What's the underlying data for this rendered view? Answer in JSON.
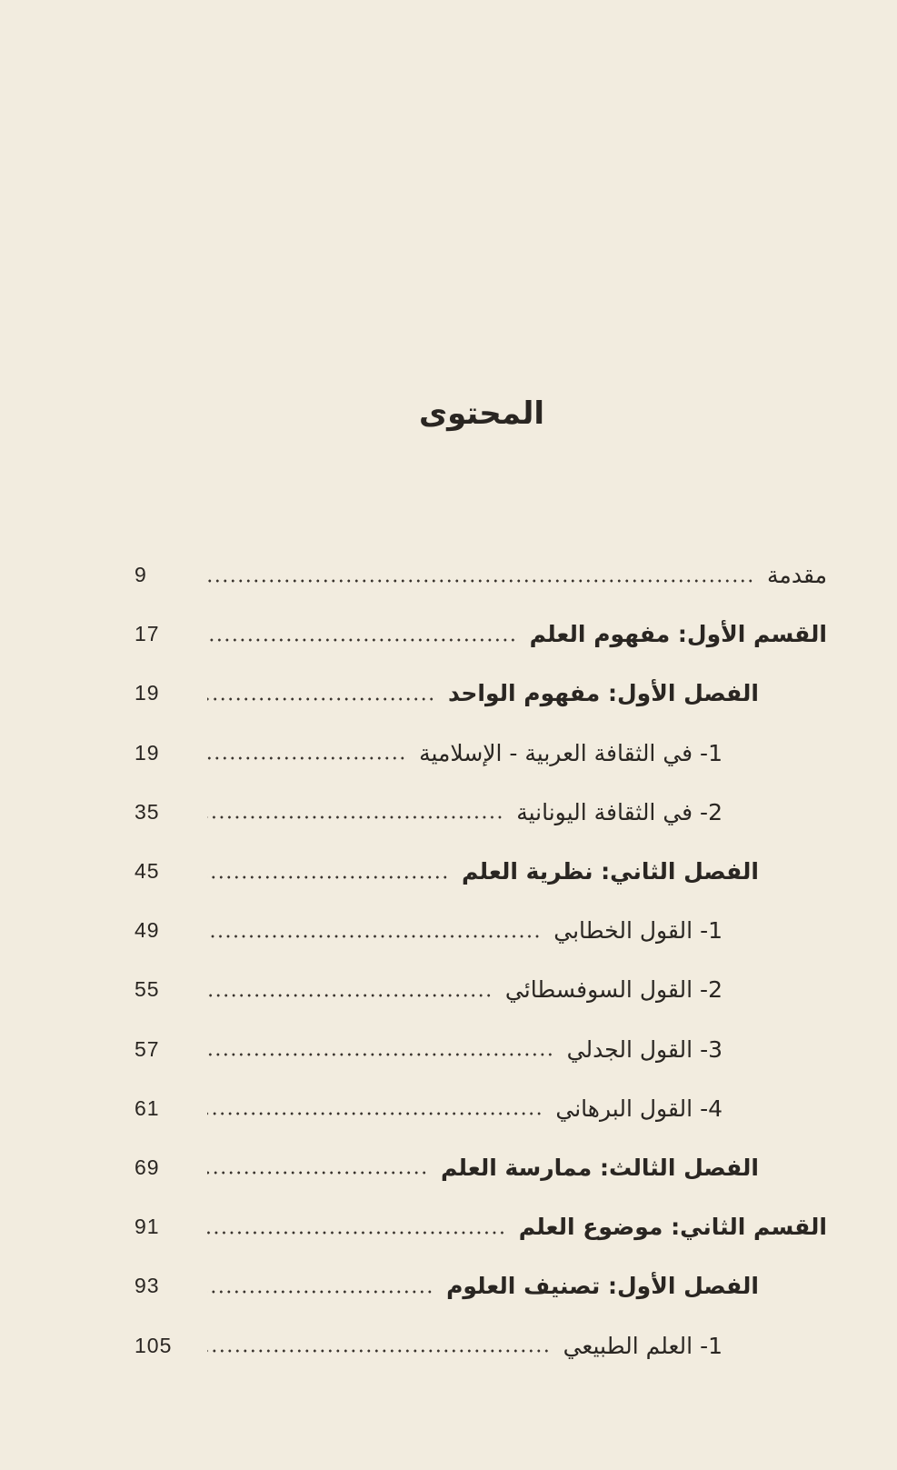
{
  "title": "المحتوى",
  "entries": [
    {
      "text": "مقدمة",
      "page": "9",
      "level": "intro"
    },
    {
      "text": "القسم الأول: مفهوم العلم",
      "page": "17",
      "level": "0"
    },
    {
      "text": "الفصل الأول: مفهوم الواحد",
      "page": "19",
      "level": "1"
    },
    {
      "text": "1- في الثقافة العربية - الإسلامية",
      "page": "19",
      "level": "2"
    },
    {
      "text": "2- في الثقافة اليونانية",
      "page": "35",
      "level": "2"
    },
    {
      "text": "الفصل الثاني: نظرية العلم",
      "page": "45",
      "level": "1"
    },
    {
      "text": "1- القول الخطابي",
      "page": "49",
      "level": "2"
    },
    {
      "text": "2- القول السوفسطائي",
      "page": "55",
      "level": "2"
    },
    {
      "text": "3- القول الجدلي",
      "page": "57",
      "level": "2"
    },
    {
      "text": "4- القول البرهاني",
      "page": "61",
      "level": "2"
    },
    {
      "text": "الفصل الثالث: ممارسة العلم",
      "page": "69",
      "level": "1"
    },
    {
      "text": "القسم الثاني: موضوع العلم",
      "page": "91",
      "level": "0"
    },
    {
      "text": "الفصل الأول: تصنيف العلوم",
      "page": "93",
      "level": "1"
    },
    {
      "text": "1- العلم الطبيعي",
      "page": "105",
      "level": "2"
    }
  ]
}
